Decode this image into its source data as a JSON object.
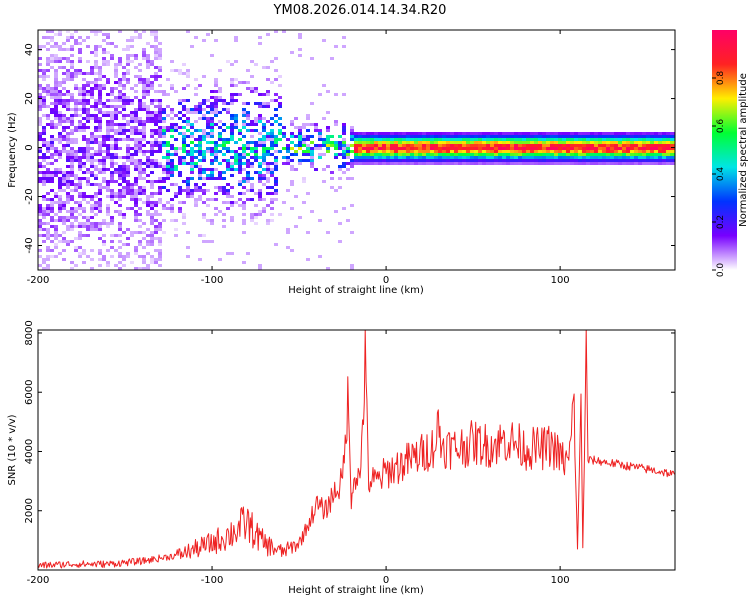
{
  "title": "YM08.2026.014.14.34.R20",
  "chart_data": [
    {
      "type": "heatmap",
      "xlabel": "Height of straight line (km)",
      "ylabel": "Frequency (Hz)",
      "xlim": [
        -200,
        166
      ],
      "ylim": [
        -50,
        48
      ],
      "xticks": [
        -200,
        -100,
        0,
        100
      ],
      "yticks": [
        -40,
        -20,
        0,
        20,
        40
      ],
      "grid": false,
      "colorbar": {
        "label": "Normalized spectral amplitude",
        "range": [
          0,
          1
        ],
        "ticks": [
          "0.0",
          "0.2",
          "0.4",
          "0.6",
          "0.8"
        ],
        "colors": [
          "#ffffff",
          "#7700ff",
          "#0033ff",
          "#00e5e5",
          "#00ff33",
          "#ffee00",
          "#ff2222",
          "#ff0066"
        ]
      },
      "ridge": {
        "center_hz": 0.5,
        "bands": [
          {
            "x_from": -200,
            "x_to": -130,
            "spread_hz": 48,
            "peak_amplitude": 0.15
          },
          {
            "x_from": -130,
            "x_to": -60,
            "spread_hz": 20,
            "peak_amplitude": 0.45
          },
          {
            "x_from": -60,
            "x_to": -20,
            "spread_hz": 8,
            "peak_amplitude": 0.55
          },
          {
            "x_from": -20,
            "x_to": 166,
            "spread_hz": 3,
            "peak_amplitude": 1.0
          }
        ]
      }
    },
    {
      "type": "line",
      "xlabel": "Height of straight line (km)",
      "ylabel": "SNR (10 * v/v)",
      "xlim": [
        -200,
        166
      ],
      "ylim": [
        0,
        8100
      ],
      "xticks": [
        -200,
        -100,
        0,
        100
      ],
      "yticks": [
        2000,
        4000,
        6000,
        8000
      ],
      "grid": false,
      "color": "#ee2222",
      "series": [
        {
          "x": [
            -200,
            -180,
            -160,
            -140,
            -120,
            -100,
            -90,
            -80,
            -75,
            -70,
            -60,
            -50,
            -45,
            -40,
            -35,
            -30,
            -25,
            -22,
            -20,
            -18,
            -15,
            -12,
            -10,
            -5,
            0,
            10,
            20,
            28,
            30,
            32,
            40,
            50,
            60,
            70,
            80,
            90,
            95,
            100,
            105,
            108,
            110,
            112,
            113,
            114,
            115,
            116,
            120,
            130,
            140,
            150,
            160,
            166
          ],
          "y": [
            150,
            200,
            200,
            300,
            500,
            900,
            1200,
            1600,
            1200,
            900,
            600,
            900,
            1500,
            2200,
            2000,
            2600,
            3000,
            5700,
            2500,
            3300,
            3000,
            7000,
            3000,
            3000,
            3300,
            3600,
            3900,
            4200,
            4900,
            4200,
            4100,
            4300,
            4200,
            4400,
            4100,
            4100,
            4200,
            3800,
            3600,
            5700,
            600,
            5900,
            800,
            3800,
            8100,
            3700,
            3700,
            3600,
            3500,
            3400,
            3300,
            3200
          ]
        }
      ]
    }
  ]
}
